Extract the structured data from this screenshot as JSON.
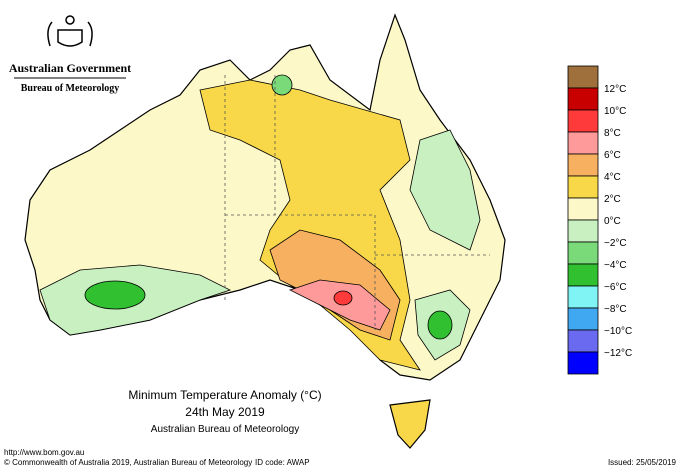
{
  "header": {
    "government": "Australian Government",
    "agency": "Bureau of Meteorology"
  },
  "map": {
    "title": "Minimum Temperature Anomaly (°C)",
    "date": "24th May 2019",
    "source": "Australian Bureau of Meteorology"
  },
  "legend": {
    "labels": [
      "12°C",
      "10°C",
      "8°C",
      "6°C",
      "4°C",
      "2°C",
      "0°C",
      "−2°C",
      "−4°C",
      "−6°C",
      "−8°C",
      "−10°C",
      "−12°C"
    ],
    "colors": [
      "#a0703c",
      "#c80000",
      "#ff3a3a",
      "#ff9a9a",
      "#f6b060",
      "#f8d848",
      "#fcf8c8",
      "#c8f0c0",
      "#7ada7a",
      "#30c030",
      "#80f4f4",
      "#40a8f0",
      "#6a6af0",
      "#0000ff"
    ]
  },
  "footer": {
    "url": "http://www.bom.gov.au",
    "copyright": "© Commonwealth of Australia 2019, Australian Bureau of Meteorology",
    "id_code": "ID code: AWAP",
    "issued": "Issued: 25/05/2019"
  }
}
